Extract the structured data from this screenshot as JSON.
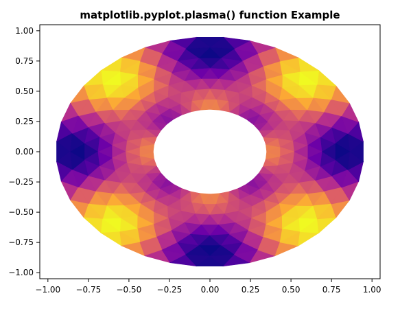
{
  "chart_data": {
    "type": "heatmap",
    "title": "matplotlib.pyplot.plasma() function Example",
    "xlabel": "",
    "ylabel": "",
    "xlim": [
      -1.05,
      1.05
    ],
    "ylim": [
      -1.05,
      1.05
    ],
    "xticks": [
      -1.0,
      -0.75,
      -0.5,
      -0.25,
      0.0,
      0.25,
      0.5,
      0.75,
      1.0
    ],
    "yticks": [
      -1.0,
      -0.75,
      -0.5,
      -0.25,
      0.0,
      0.25,
      0.5,
      0.75,
      1.0
    ],
    "xtick_labels": [
      "−1.00",
      "−0.75",
      "−0.50",
      "−0.25",
      "0.00",
      "0.25",
      "0.50",
      "0.75",
      "1.00"
    ],
    "ytick_labels": [
      "−1.00",
      "−0.75",
      "−0.50",
      "−0.25",
      "0.00",
      "0.25",
      "0.50",
      "0.75",
      "1.00"
    ],
    "grid": false,
    "colormap": "plasma",
    "mesh": {
      "shape": "annulus triangulation",
      "inner_radius": 0.35,
      "outer_radius": 0.95,
      "field": "cos(n*theta) radial pattern",
      "angular_frequency": 4
    },
    "colors": [
      "#0d0887",
      "#6a00a8",
      "#b12a90",
      "#e16462",
      "#fca636",
      "#f0f921"
    ]
  }
}
